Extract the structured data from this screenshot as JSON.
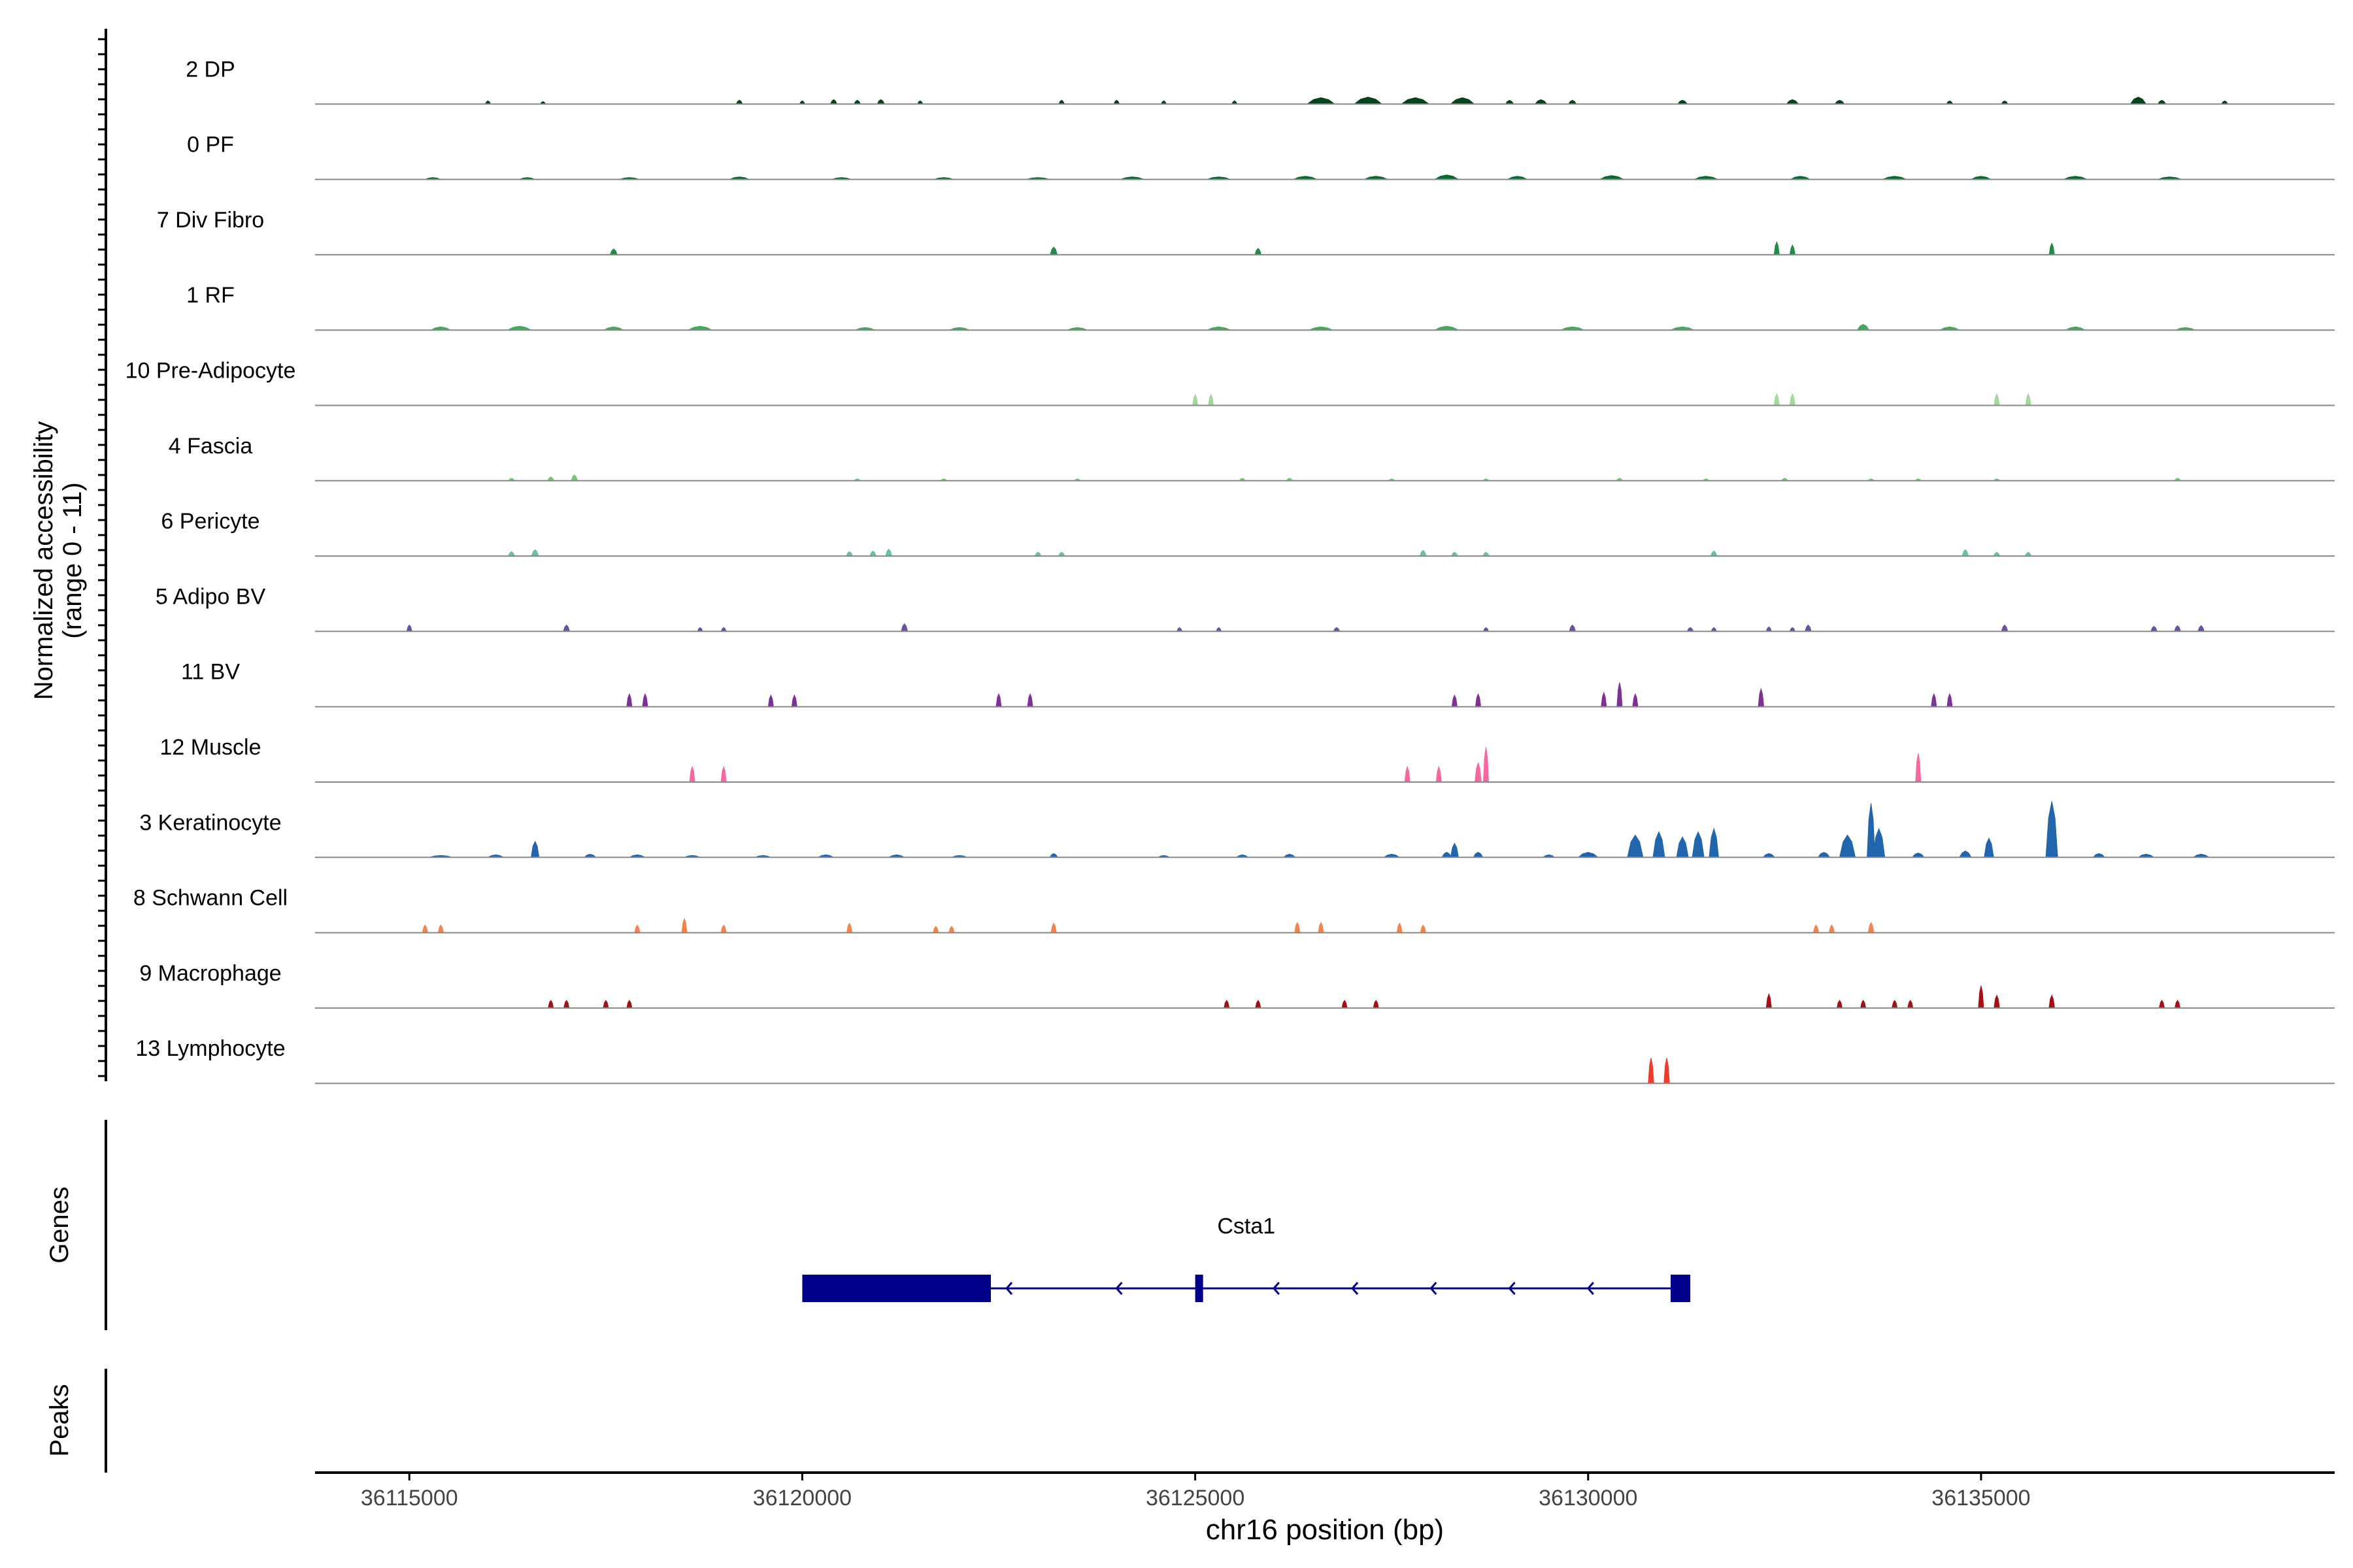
{
  "chart_data": {
    "type": "coverage",
    "xlabel": "chr16 position (bp)",
    "xlim": [
      36113800,
      36139500
    ],
    "xticks": [
      36115000,
      36120000,
      36125000,
      36130000,
      36135000
    ],
    "xtick_labels": [
      "36115000",
      "36120000",
      "36125000",
      "36130000",
      "36135000"
    ],
    "ylabel": [
      "Normalized accessibility",
      "(range 0 - 11)"
    ],
    "ylim": [
      0,
      11
    ],
    "tracks": [
      {
        "name": "2 DP",
        "color": "#00441b",
        "peaks": [
          [
            36116000,
            0.5,
            60
          ],
          [
            36116700,
            0.4,
            50
          ],
          [
            36119200,
            0.6,
            80
          ],
          [
            36120000,
            0.5,
            60
          ],
          [
            36120400,
            0.7,
            80
          ],
          [
            36120700,
            0.6,
            80
          ],
          [
            36121000,
            0.7,
            90
          ],
          [
            36121500,
            0.5,
            60
          ],
          [
            36123300,
            0.6,
            70
          ],
          [
            36124000,
            0.6,
            70
          ],
          [
            36124600,
            0.5,
            60
          ],
          [
            36125500,
            0.5,
            60
          ],
          [
            36126600,
            1.0,
            350
          ],
          [
            36127200,
            1.1,
            350
          ],
          [
            36127800,
            1.0,
            350
          ],
          [
            36128400,
            1.0,
            300
          ],
          [
            36129000,
            0.6,
            100
          ],
          [
            36129400,
            0.7,
            150
          ],
          [
            36129800,
            0.6,
            100
          ],
          [
            36131200,
            0.6,
            120
          ],
          [
            36132600,
            0.7,
            150
          ],
          [
            36133200,
            0.6,
            120
          ],
          [
            36134600,
            0.5,
            80
          ],
          [
            36135300,
            0.5,
            80
          ],
          [
            36137000,
            1.1,
            200
          ],
          [
            36137300,
            0.6,
            100
          ],
          [
            36138100,
            0.5,
            80
          ]
        ]
      },
      {
        "name": "0 PF",
        "color": "#006d2c",
        "peaks": [
          [
            36115300,
            0.3,
            200
          ],
          [
            36116500,
            0.3,
            200
          ],
          [
            36117800,
            0.3,
            250
          ],
          [
            36119200,
            0.4,
            250
          ],
          [
            36120500,
            0.3,
            250
          ],
          [
            36121800,
            0.3,
            250
          ],
          [
            36123000,
            0.3,
            300
          ],
          [
            36124200,
            0.4,
            300
          ],
          [
            36125300,
            0.4,
            300
          ],
          [
            36126400,
            0.5,
            300
          ],
          [
            36127300,
            0.5,
            300
          ],
          [
            36128200,
            0.7,
            300
          ],
          [
            36129100,
            0.5,
            250
          ],
          [
            36130300,
            0.6,
            300
          ],
          [
            36131500,
            0.5,
            300
          ],
          [
            36132700,
            0.5,
            250
          ],
          [
            36133900,
            0.5,
            300
          ],
          [
            36135000,
            0.5,
            250
          ],
          [
            36136200,
            0.5,
            300
          ],
          [
            36137400,
            0.4,
            300
          ]
        ]
      },
      {
        "name": "7 Div Fibro",
        "color": "#238b45",
        "peaks": [
          [
            36117600,
            0.9,
            90
          ],
          [
            36123200,
            1.2,
            90
          ],
          [
            36125800,
            1.0,
            80
          ],
          [
            36132400,
            2.0,
            60
          ],
          [
            36132600,
            1.5,
            60
          ],
          [
            36135900,
            1.8,
            60
          ]
        ]
      },
      {
        "name": "1 RF",
        "color": "#41ab5d",
        "peaks": [
          [
            36115400,
            0.5,
            250
          ],
          [
            36116400,
            0.6,
            300
          ],
          [
            36117600,
            0.5,
            250
          ],
          [
            36118700,
            0.6,
            300
          ],
          [
            36120800,
            0.4,
            250
          ],
          [
            36122000,
            0.4,
            250
          ],
          [
            36123500,
            0.4,
            250
          ],
          [
            36125300,
            0.5,
            300
          ],
          [
            36126600,
            0.5,
            300
          ],
          [
            36128200,
            0.6,
            300
          ],
          [
            36129800,
            0.5,
            300
          ],
          [
            36131200,
            0.5,
            300
          ],
          [
            36133500,
            0.9,
            150
          ],
          [
            36134600,
            0.5,
            250
          ],
          [
            36136200,
            0.5,
            250
          ],
          [
            36137600,
            0.4,
            250
          ]
        ]
      },
      {
        "name": "10 Pre-Adipocyte",
        "color": "#a1d99b",
        "peaks": [
          [
            36125000,
            1.7,
            60
          ],
          [
            36125200,
            1.7,
            60
          ],
          [
            36132400,
            1.8,
            50
          ],
          [
            36132600,
            1.8,
            50
          ],
          [
            36135200,
            1.8,
            60
          ],
          [
            36135600,
            1.8,
            60
          ]
        ]
      },
      {
        "name": "4 Fascia",
        "color": "#74c476",
        "peaks": [
          [
            36116300,
            0.4,
            80
          ],
          [
            36116800,
            0.6,
            80
          ],
          [
            36117100,
            0.9,
            80
          ],
          [
            36120700,
            0.3,
            80
          ],
          [
            36121800,
            0.3,
            80
          ],
          [
            36123500,
            0.3,
            80
          ],
          [
            36125600,
            0.4,
            80
          ],
          [
            36126200,
            0.4,
            80
          ],
          [
            36127500,
            0.3,
            80
          ],
          [
            36128700,
            0.3,
            80
          ],
          [
            36130400,
            0.4,
            80
          ],
          [
            36131500,
            0.3,
            80
          ],
          [
            36132500,
            0.4,
            80
          ],
          [
            36133600,
            0.3,
            80
          ],
          [
            36134200,
            0.3,
            80
          ],
          [
            36135200,
            0.3,
            80
          ],
          [
            36137500,
            0.4,
            80
          ]
        ]
      },
      {
        "name": "6 Pericyte",
        "color": "#66c2a4",
        "peaks": [
          [
            36116300,
            0.7,
            80
          ],
          [
            36116600,
            1.0,
            90
          ],
          [
            36120600,
            0.7,
            80
          ],
          [
            36120900,
            0.8,
            80
          ],
          [
            36121100,
            1.1,
            80
          ],
          [
            36123000,
            0.6,
            80
          ],
          [
            36123300,
            0.6,
            80
          ],
          [
            36127900,
            0.9,
            80
          ],
          [
            36128300,
            0.6,
            80
          ],
          [
            36128700,
            0.6,
            80
          ],
          [
            36131600,
            0.8,
            80
          ],
          [
            36134800,
            1.0,
            80
          ],
          [
            36135200,
            0.6,
            80
          ],
          [
            36135600,
            0.6,
            80
          ]
        ]
      },
      {
        "name": "5 Adipo BV",
        "color": "#6a51a3",
        "peaks": [
          [
            36115000,
            1.0,
            50
          ],
          [
            36117000,
            1.0,
            80
          ],
          [
            36118700,
            0.6,
            60
          ],
          [
            36119000,
            0.6,
            60
          ],
          [
            36121300,
            1.2,
            80
          ],
          [
            36124800,
            0.6,
            60
          ],
          [
            36125300,
            0.6,
            60
          ],
          [
            36126800,
            0.6,
            80
          ],
          [
            36128700,
            0.6,
            60
          ],
          [
            36129800,
            1.0,
            80
          ],
          [
            36131300,
            0.6,
            80
          ],
          [
            36131600,
            0.6,
            60
          ],
          [
            36132300,
            0.7,
            60
          ],
          [
            36132600,
            0.6,
            60
          ],
          [
            36132800,
            1.0,
            80
          ],
          [
            36135300,
            1.0,
            80
          ],
          [
            36137200,
            0.8,
            80
          ],
          [
            36137500,
            0.9,
            80
          ],
          [
            36137800,
            0.9,
            80
          ]
        ]
      },
      {
        "name": "11 BV",
        "color": "#7b3294",
        "peaks": [
          [
            36117800,
            2.0,
            60
          ],
          [
            36118000,
            2.0,
            60
          ],
          [
            36119600,
            1.8,
            60
          ],
          [
            36119900,
            1.8,
            60
          ],
          [
            36122500,
            2.0,
            60
          ],
          [
            36122900,
            2.0,
            60
          ],
          [
            36128300,
            1.8,
            60
          ],
          [
            36128600,
            2.0,
            60
          ],
          [
            36130200,
            2.2,
            60
          ],
          [
            36130400,
            3.8,
            50
          ],
          [
            36130600,
            2.0,
            60
          ],
          [
            36132200,
            2.8,
            70
          ],
          [
            36134400,
            2.0,
            60
          ],
          [
            36134600,
            2.0,
            60
          ]
        ]
      },
      {
        "name": "12 Muscle",
        "color": "#f768a1",
        "peaks": [
          [
            36118600,
            2.4,
            50
          ],
          [
            36119000,
            2.4,
            50
          ],
          [
            36127700,
            2.4,
            50
          ],
          [
            36128100,
            2.4,
            50
          ],
          [
            36128600,
            3.0,
            80
          ],
          [
            36128700,
            5.5,
            40
          ],
          [
            36134200,
            4.5,
            50
          ]
        ]
      },
      {
        "name": "3 Keratinocyte",
        "color": "#2166ac",
        "peaks": [
          [
            36115400,
            0.3,
            300
          ],
          [
            36116100,
            0.4,
            200
          ],
          [
            36116600,
            2.5,
            100
          ],
          [
            36117300,
            0.5,
            150
          ],
          [
            36117900,
            0.4,
            200
          ],
          [
            36118600,
            0.3,
            200
          ],
          [
            36119500,
            0.3,
            200
          ],
          [
            36120300,
            0.4,
            200
          ],
          [
            36121200,
            0.4,
            200
          ],
          [
            36122000,
            0.3,
            200
          ],
          [
            36123200,
            0.6,
            100
          ],
          [
            36124600,
            0.3,
            150
          ],
          [
            36125600,
            0.4,
            150
          ],
          [
            36126200,
            0.5,
            150
          ],
          [
            36127500,
            0.5,
            200
          ],
          [
            36128200,
            0.8,
            120
          ],
          [
            36128300,
            2.2,
            100
          ],
          [
            36128600,
            0.8,
            120
          ],
          [
            36129500,
            0.4,
            150
          ],
          [
            36130000,
            0.8,
            250
          ],
          [
            36130600,
            3.5,
            200
          ],
          [
            36130900,
            4.0,
            150
          ],
          [
            36131200,
            3.2,
            150
          ],
          [
            36131400,
            4.0,
            150
          ],
          [
            36131600,
            4.5,
            120
          ],
          [
            36132300,
            0.6,
            150
          ],
          [
            36133000,
            0.8,
            150
          ],
          [
            36133300,
            3.5,
            200
          ],
          [
            36133600,
            8.5,
            100
          ],
          [
            36133700,
            4.5,
            150
          ],
          [
            36134200,
            0.7,
            150
          ],
          [
            36134800,
            1.0,
            150
          ],
          [
            36135100,
            3.0,
            120
          ],
          [
            36135900,
            8.8,
            150
          ],
          [
            36136500,
            0.6,
            150
          ],
          [
            36137100,
            0.5,
            200
          ],
          [
            36137800,
            0.5,
            200
          ]
        ]
      },
      {
        "name": "8 Schwann Cell",
        "color": "#f4844c",
        "peaks": [
          [
            36115200,
            1.2,
            60
          ],
          [
            36115400,
            1.2,
            60
          ],
          [
            36117900,
            1.2,
            60
          ],
          [
            36118500,
            2.2,
            60
          ],
          [
            36119000,
            1.2,
            60
          ],
          [
            36120600,
            1.5,
            60
          ],
          [
            36121700,
            1.0,
            60
          ],
          [
            36121900,
            1.0,
            60
          ],
          [
            36123200,
            1.5,
            60
          ],
          [
            36126300,
            1.6,
            60
          ],
          [
            36126600,
            1.6,
            60
          ],
          [
            36127600,
            1.5,
            60
          ],
          [
            36127900,
            1.2,
            60
          ],
          [
            36132900,
            1.2,
            60
          ],
          [
            36133100,
            1.2,
            60
          ],
          [
            36133600,
            1.6,
            70
          ]
        ]
      },
      {
        "name": "9 Macrophage",
        "color": "#a50f15",
        "peaks": [
          [
            36116800,
            1.2,
            50
          ],
          [
            36117000,
            1.2,
            50
          ],
          [
            36117500,
            1.2,
            50
          ],
          [
            36117800,
            1.2,
            50
          ],
          [
            36125400,
            1.2,
            50
          ],
          [
            36125800,
            1.2,
            50
          ],
          [
            36126900,
            1.2,
            50
          ],
          [
            36127300,
            1.2,
            50
          ],
          [
            36132300,
            2.2,
            60
          ],
          [
            36133200,
            1.2,
            50
          ],
          [
            36133500,
            1.2,
            50
          ],
          [
            36133900,
            1.2,
            50
          ],
          [
            36134100,
            1.2,
            50
          ],
          [
            36135000,
            3.5,
            60
          ],
          [
            36135200,
            2.0,
            70
          ],
          [
            36135900,
            2.0,
            70
          ],
          [
            36137300,
            1.2,
            50
          ],
          [
            36137500,
            1.2,
            50
          ]
        ]
      },
      {
        "name": "13 Lymphocyte",
        "color": "#ef3b2c",
        "peaks": [
          [
            36130800,
            4.0,
            70
          ],
          [
            36131000,
            4.0,
            70
          ]
        ]
      }
    ],
    "genes_label": "Genes",
    "peaks_label": "Peaks",
    "gene": {
      "name": "Csta1",
      "strand": "-",
      "start": 36120000,
      "end": 36131300,
      "exons": [
        [
          36120000,
          36122400
        ],
        [
          36125000,
          36125100
        ],
        [
          36131050,
          36131300
        ]
      ],
      "arrows": [
        36122600,
        36124000,
        36126000,
        36127000,
        36128000,
        36129000,
        36130000
      ]
    }
  }
}
